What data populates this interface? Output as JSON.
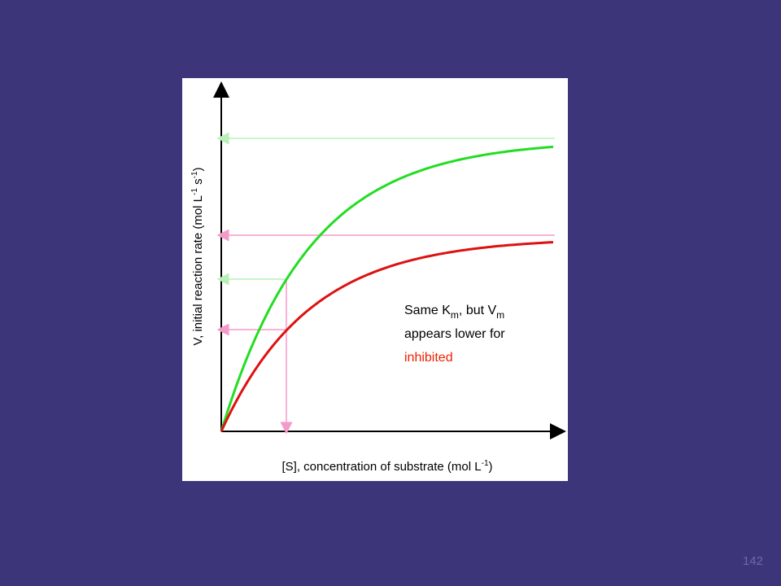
{
  "y_axis_label": {
    "main": "V, initial reaction rate (mol L",
    "sup1": "-1",
    "mid": " s",
    "sup2": "-1",
    "end": ")"
  },
  "x_axis_label": {
    "main": "[S], concentration of substrate (mol L",
    "sup": "-1",
    "end": ")"
  },
  "annotation": {
    "line1": {
      "a": "Same K",
      "sub1": "m",
      "b": ", but V",
      "sub2": "m"
    },
    "line2": "appears lower for",
    "line3": "inhibited"
  },
  "slide_number": "142"
}
